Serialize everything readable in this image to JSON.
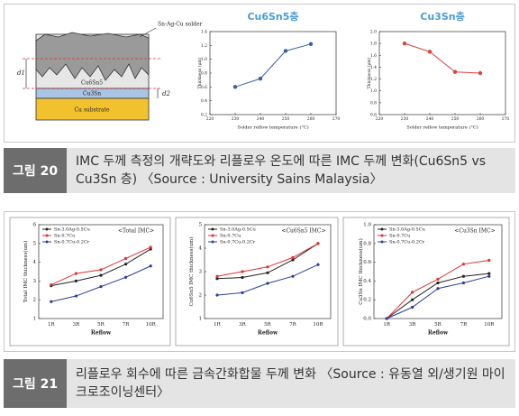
{
  "figure_20": {
    "diagram": {
      "solder_label": "Sn-Ag-Cu solder",
      "d1": "d1",
      "d2": "d2",
      "layer_1": "Cu6Sn5",
      "layer_2": "Cu3Sn",
      "substrate": "Cu substrate"
    },
    "charts": [
      {
        "type": "line",
        "title": "Cu6Sn5층",
        "xlabel": "Solder reflow temperature (°C)",
        "ylabel": "Thickness (μm)",
        "x": [
          230,
          240,
          250,
          260
        ],
        "values": [
          0.6,
          0.72,
          1.12,
          1.22
        ],
        "color": "#3a5fa8",
        "xlim": [
          220,
          270
        ],
        "xticks": [
          220,
          230,
          240,
          250,
          260,
          270
        ],
        "ylim": [
          0.2,
          1.4
        ],
        "yticks": [
          0.2,
          0.4,
          0.6,
          0.8,
          {
            "value": 1,
            "label": "1.0"
          },
          1.2,
          1.4
        ]
      },
      {
        "type": "line",
        "title": "Cu3Sn층",
        "xlabel": "Solder reflow temperature (°C)",
        "ylabel": "Thickness (μm)",
        "x": [
          230,
          240,
          250,
          260
        ],
        "values": [
          1.8,
          1.66,
          1.32,
          1.3
        ],
        "color": "#d9443b",
        "xlim": [
          220,
          270
        ],
        "xticks": [
          220,
          230,
          240,
          250,
          260,
          270
        ],
        "ylim": [
          0.6,
          2.0
        ],
        "yticks": [
          0.6,
          0.8,
          {
            "value": 1,
            "label": "1.0"
          },
          1.2,
          1.4,
          1.6,
          1.8,
          {
            "value": 2,
            "label": "2.0"
          }
        ]
      }
    ]
  },
  "caption_20": {
    "label": "그림 20",
    "text": "IMC 두께 측정의 개략도와 리플로우 온도에 따른 IMC 두께 변화(Cu6Sn5 vs Cu3Sn 층) 〈Source : University Sains Malaysia〉"
  },
  "figure_21": {
    "charts": [
      {
        "type": "line",
        "title": "<Total IMC>",
        "xlabel": "Reflow",
        "ylabel": "Total IMC thickness(um)",
        "categories": [
          "1R",
          "3R",
          "5R",
          "7R",
          "10R"
        ],
        "ylim": [
          1,
          6
        ],
        "yticks": [
          1,
          2,
          3,
          4,
          5,
          6
        ],
        "series": [
          {
            "name": "Sn-3.0Ag-0.5Cu",
            "color": "#222222",
            "values": [
              2.75,
              3.0,
              3.3,
              3.9,
              4.7
            ]
          },
          {
            "name": "Sn-0.7Cu",
            "color": "#e03030",
            "values": [
              2.8,
              3.4,
              3.6,
              4.2,
              4.8
            ]
          },
          {
            "name": "Sn-0.7Cu-0.2Cr",
            "color": "#2a3f9a",
            "values": [
              1.9,
              2.2,
              2.7,
              3.2,
              3.8
            ]
          }
        ]
      },
      {
        "type": "line",
        "title": "<Cu6Sn5 IMC>",
        "xlabel": "Reflow",
        "ylabel": "Cu6Sn5 IMC thickness(um)",
        "categories": [
          "1R",
          "3R",
          "5R",
          "7R",
          "10R"
        ],
        "ylim": [
          1,
          5
        ],
        "yticks": [
          1,
          2,
          3,
          4,
          5
        ],
        "series": [
          {
            "name": "Sn-3.0Ag-0.5Cu",
            "color": "#222222",
            "values": [
              2.7,
              2.75,
              2.95,
              3.5,
              4.2
            ]
          },
          {
            "name": "Sn-0.7Cu",
            "color": "#e03030",
            "values": [
              2.8,
              3.0,
              3.2,
              3.6,
              4.2
            ]
          },
          {
            "name": "Sn-0.7Cu-0.2Cr",
            "color": "#2a3f9a",
            "values": [
              2.0,
              2.1,
              2.5,
              2.8,
              3.3
            ]
          }
        ]
      },
      {
        "type": "line",
        "title": "<Cu3Sn IMC>",
        "xlabel": "Reflow",
        "ylabel": "Cu3Sn IMC thickness(um)",
        "categories": [
          "1R",
          "3R",
          "5R",
          "7R",
          "10R"
        ],
        "ylim": [
          0,
          1
        ],
        "yticks": [
          {
            "value": 0,
            "label": "0.0"
          },
          0.2,
          0.4,
          0.6,
          0.8,
          {
            "value": 1,
            "label": "1.0"
          }
        ],
        "series": [
          {
            "name": "Sn-3.0Ag-0.5Cu",
            "color": "#222222",
            "values": [
              0,
              0.2,
              0.38,
              0.45,
              0.48
            ]
          },
          {
            "name": "Sn-0.7Cu",
            "color": "#e03030",
            "values": [
              0,
              0.28,
              0.42,
              0.58,
              0.62
            ]
          },
          {
            "name": "Sn-0.7Cu-0.2Cr",
            "color": "#2a3f9a",
            "values": [
              0,
              0.12,
              0.32,
              0.38,
              0.45
            ]
          }
        ]
      }
    ]
  },
  "caption_21": {
    "label": "그림 21",
    "text": "리플로우 회수에 따른 금속간화합물 두께 변화 〈Source : 유동열 외/생기원 마이크로조이닝센터〉"
  }
}
